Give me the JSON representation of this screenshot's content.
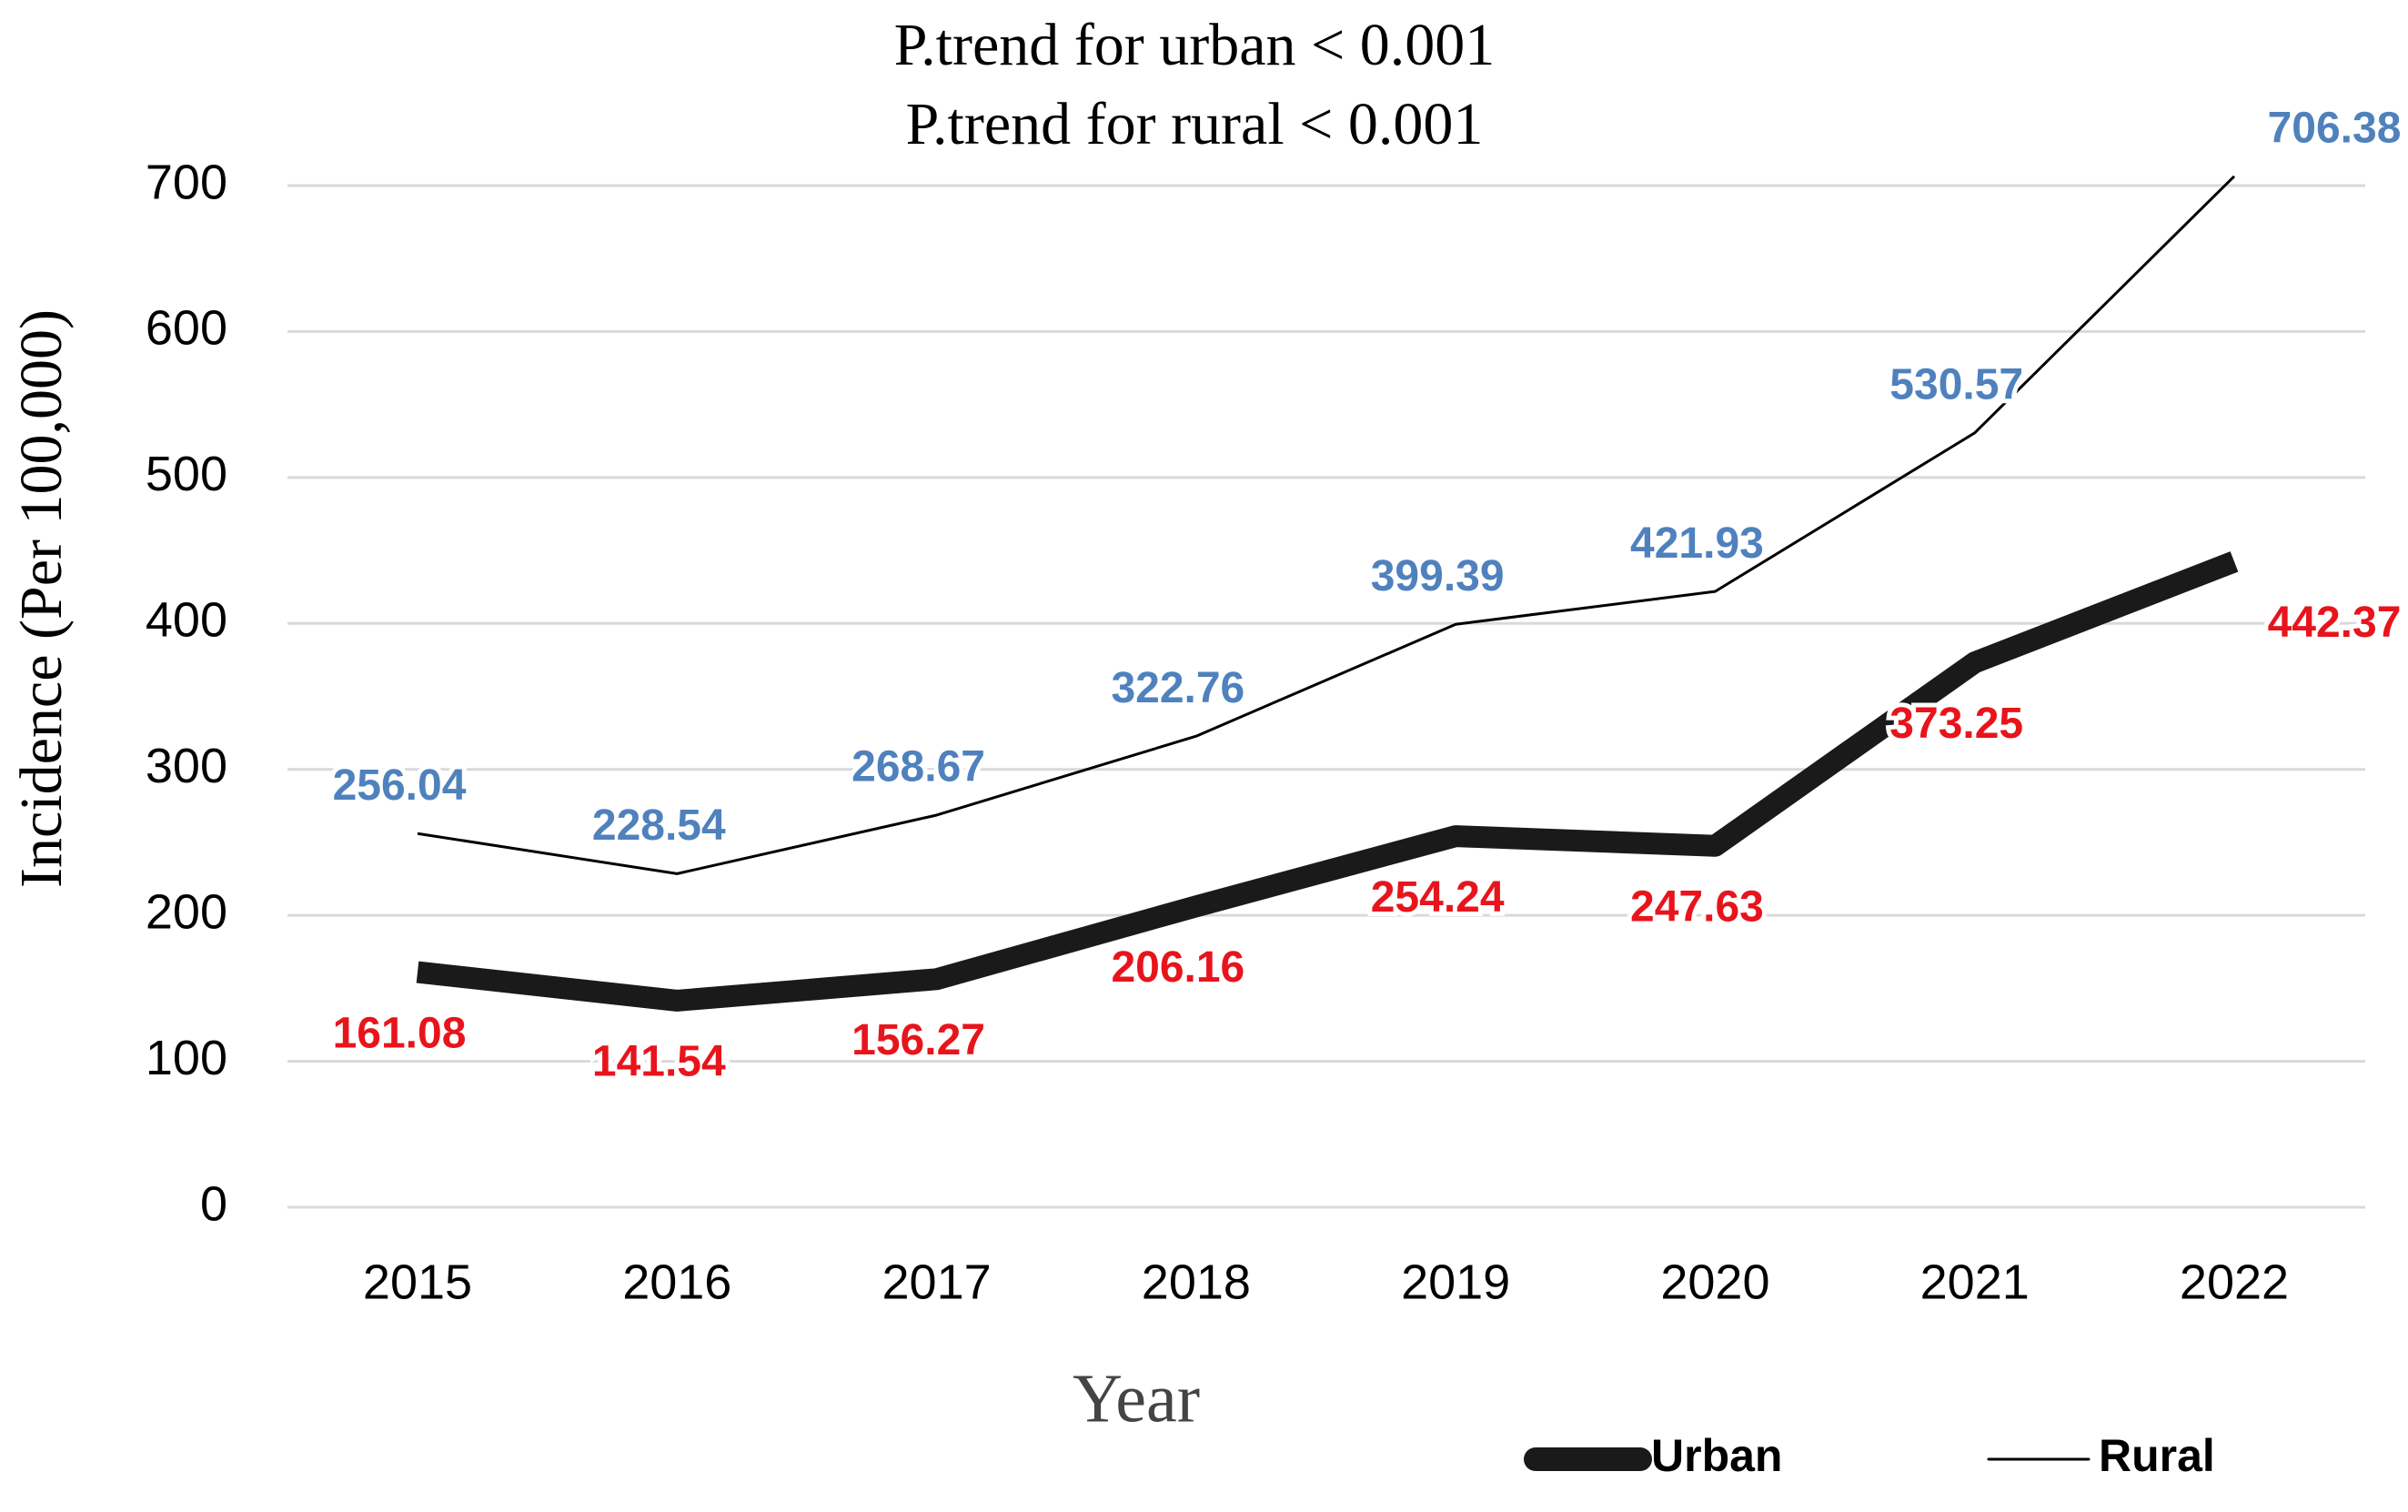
{
  "chart_data": {
    "type": "line",
    "title_lines": [
      "P.trend for urban < 0.001",
      "P.trend for rural  < 0.001"
    ],
    "x_label": "Year",
    "y_label": "Incidence (Per 100,000)",
    "categories": [
      "2015",
      "2016",
      "2017",
      "2018",
      "2019",
      "2020",
      "2021",
      "2022"
    ],
    "series": [
      {
        "name": "Urban",
        "color": "#1a1a1a",
        "label_color": "#e8141c",
        "values": [
          161.08,
          141.54,
          156.27,
          206.16,
          254.24,
          247.63,
          373.25,
          442.37
        ]
      },
      {
        "name": "Rural",
        "color": "#000000",
        "label_color": "#4f81bd",
        "values": [
          256.04,
          228.54,
          268.67,
          322.76,
          399.39,
          421.93,
          530.57,
          706.38
        ]
      }
    ],
    "ylim": [
      0,
      700
    ],
    "yticks": [
      0,
      100,
      200,
      300,
      400,
      500,
      600,
      700
    ],
    "grid": true,
    "legend": "bottom-right"
  }
}
